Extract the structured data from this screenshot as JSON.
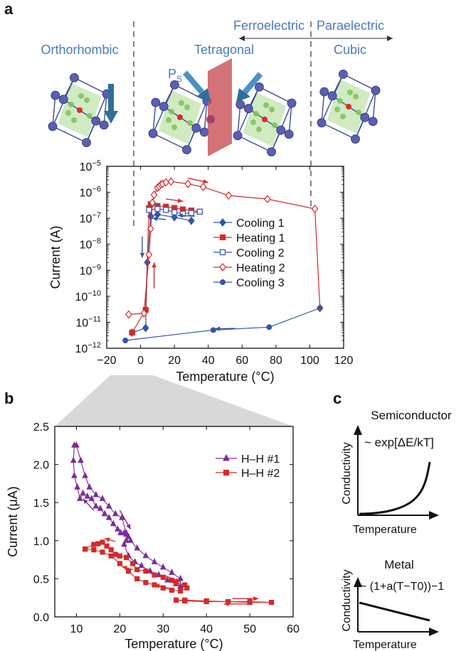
{
  "panel_labels": {
    "a": "a",
    "b": "b",
    "c": "c"
  },
  "phase_labels": {
    "orthorhombic": "Orthorhombic",
    "tetragonal": "Tetragonal",
    "cubic": "Cubic",
    "ferroelectric": "Ferroelectric",
    "paraelectric": "Paraelectric",
    "ps": "P",
    "ps_sub": "S"
  },
  "colors": {
    "blue_series": "#3555a6",
    "red_series": "#d42a2a",
    "purple_series": "#7b2d96",
    "phase_text": "#4a7ab8",
    "domain_wall": "#c9545a",
    "arrow": "#2f6f9a"
  },
  "chart_data": [
    {
      "id": "panel-a",
      "type": "line",
      "log_y": true,
      "xlabel": "Temperature (°C)",
      "ylabel": "Current (A)",
      "xlim": [
        -20,
        120
      ],
      "ylim_exp": [
        -12,
        -5
      ],
      "x_ticks": [
        "−20",
        "0",
        "20",
        "40",
        "60",
        "80",
        "100",
        "120"
      ],
      "y_tick_base": "10",
      "y_tick_exps": [
        "−12",
        "−11",
        "−10",
        "−9",
        "−8",
        "−7",
        "−6",
        "−5"
      ],
      "legend_position": "right",
      "series": [
        {
          "name": "Cooling 1",
          "color": "#3555a6",
          "marker": "diamond-filled",
          "points": [
            [
              30,
              8e-08
            ],
            [
              20,
              1.1e-07
            ],
            [
              10,
              1.4e-07
            ],
            [
              6,
              1.2e-07
            ],
            [
              4,
              2e-09
            ],
            [
              3,
              6e-12
            ],
            [
              -5,
              4e-12
            ]
          ]
        },
        {
          "name": "Heating 1",
          "color": "#d42a2a",
          "marker": "square-filled",
          "points": [
            [
              -5,
              4e-12
            ],
            [
              3,
              3e-11
            ],
            [
              5,
              2.5e-07
            ],
            [
              6,
              3.5e-07
            ],
            [
              10,
              3e-07
            ],
            [
              15,
              2.8e-07
            ],
            [
              20,
              2.5e-07
            ],
            [
              25,
              2.2e-07
            ],
            [
              30,
              2e-07
            ],
            [
              35,
              1.8e-07
            ]
          ]
        },
        {
          "name": "Cooling 2",
          "color": "#3555a6",
          "marker": "square-open",
          "points": [
            [
              35,
              1.8e-07
            ],
            [
              30,
              1.6e-07
            ],
            [
              25,
              1.5e-07
            ],
            [
              20,
              1.7e-07
            ],
            [
              15,
              2.1e-07
            ],
            [
              10,
              2.3e-07
            ],
            [
              5,
              2.1e-07
            ]
          ]
        },
        {
          "name": "Heating 2",
          "color": "#d42a2a",
          "marker": "diamond-open",
          "points": [
            [
              -7,
              2e-11
            ],
            [
              2,
              2.2e-11
            ],
            [
              5,
              4e-09
            ],
            [
              6,
              4e-08
            ],
            [
              7,
              4e-07
            ],
            [
              8,
              8e-07
            ],
            [
              10,
              1.5e-06
            ],
            [
              11,
              1.7e-06
            ],
            [
              12,
              2e-06
            ],
            [
              13,
              2.1e-06
            ],
            [
              15,
              2.4e-06
            ],
            [
              18,
              2.6e-06
            ],
            [
              28,
              2.1e-06
            ],
            [
              37,
              1.6e-06
            ],
            [
              52,
              7.5e-07
            ],
            [
              75,
              5.5e-07
            ],
            [
              103,
              2.3e-07
            ],
            [
              106,
              3.5e-11
            ]
          ]
        },
        {
          "name": "Cooling 3",
          "color": "#3555a6",
          "marker": "circle-filled",
          "points": [
            [
              106,
              3.5e-11
            ],
            [
              76,
              6.5e-12
            ],
            [
              43,
              5e-12
            ],
            [
              -9,
              2e-12
            ]
          ]
        }
      ]
    },
    {
      "id": "panel-b",
      "type": "line",
      "xlabel": "Temperature (°C)",
      "ylabel": "Current (μA)",
      "xlim": [
        5,
        60
      ],
      "ylim": [
        0,
        2.5
      ],
      "x_ticks": [
        "10",
        "20",
        "30",
        "40",
        "50",
        "60"
      ],
      "y_ticks": [
        "0.0",
        "0.5",
        "1.0",
        "1.5",
        "2.0",
        "2.5"
      ],
      "legend_position": "top-right",
      "series": [
        {
          "name": "H–H #1",
          "color": "#7b2d96",
          "marker": "triangle",
          "points": [
            [
              9.5,
              2.25
            ],
            [
              9.3,
              2.05
            ],
            [
              9.5,
              1.85
            ],
            [
              10.2,
              1.7
            ],
            [
              10.8,
              1.55
            ],
            [
              11.5,
              1.62
            ],
            [
              12.5,
              1.58
            ],
            [
              13.5,
              1.55
            ],
            [
              14.5,
              1.45
            ],
            [
              15.5,
              1.42
            ],
            [
              16.5,
              1.35
            ],
            [
              17.5,
              1.3
            ],
            [
              18.5,
              1.22
            ],
            [
              19.5,
              1.15
            ],
            [
              20.2,
              1.1
            ],
            [
              21,
              1.1
            ],
            [
              21.5,
              1.08
            ],
            [
              22,
              1.05
            ],
            [
              21.5,
              1.0
            ],
            [
              21,
              0.95
            ],
            [
              22,
              0.8
            ],
            [
              23.5,
              0.72
            ],
            [
              25,
              0.67
            ],
            [
              27,
              0.6
            ],
            [
              29,
              0.55
            ],
            [
              31,
              0.48
            ],
            [
              33,
              0.43
            ],
            [
              34,
              0.4
            ],
            [
              34,
              0.5
            ],
            [
              32,
              0.58
            ],
            [
              30,
              0.65
            ],
            [
              28,
              0.72
            ],
            [
              26,
              0.8
            ],
            [
              24,
              0.9
            ],
            [
              22.5,
              1.0
            ],
            [
              21.5,
              1.1
            ],
            [
              20.5,
              1.3
            ],
            [
              19,
              1.35
            ],
            [
              17.5,
              1.45
            ],
            [
              16,
              1.55
            ],
            [
              14.5,
              1.6
            ],
            [
              13,
              1.7
            ],
            [
              12,
              1.85
            ],
            [
              11,
              2.05
            ],
            [
              10,
              2.25
            ]
          ]
        },
        {
          "name": "H–H #2",
          "color": "#d42a2a",
          "marker": "square",
          "points": [
            [
              12,
              0.89
            ],
            [
              14,
              0.95
            ],
            [
              15,
              0.96
            ],
            [
              16,
              0.98
            ],
            [
              17,
              0.93
            ],
            [
              18,
              0.88
            ],
            [
              19,
              0.82
            ],
            [
              20,
              0.8
            ],
            [
              21.5,
              0.78
            ],
            [
              23,
              0.7
            ],
            [
              24,
              0.62
            ],
            [
              26,
              0.6
            ],
            [
              28,
              0.55
            ],
            [
              30,
              0.52
            ],
            [
              32,
              0.48
            ],
            [
              33,
              0.45
            ],
            [
              35,
              0.42
            ],
            [
              35.5,
              0.38
            ],
            [
              34,
              0.34
            ],
            [
              32,
              0.35
            ],
            [
              30,
              0.38
            ],
            [
              28,
              0.42
            ],
            [
              26,
              0.45
            ],
            [
              24,
              0.5
            ],
            [
              22,
              0.6
            ],
            [
              20,
              0.7
            ],
            [
              18,
              0.8
            ],
            [
              16,
              0.85
            ],
            [
              14,
              0.88
            ],
            [
              12,
              0.89
            ]
          ]
        },
        {
          "name": "H–H #2",
          "color": "#d42a2a",
          "marker": "square",
          "points": [
            [
              33,
              0.22
            ],
            [
              35,
              0.21
            ],
            [
              40,
              0.2
            ],
            [
              45,
              0.2
            ],
            [
              50,
              0.19
            ],
            [
              55,
              0.19
            ],
            [
              50,
              0.2
            ],
            [
              45,
              0.2
            ],
            [
              40,
              0.21
            ],
            [
              35,
              0.22
            ],
            [
              33,
              0.22
            ]
          ]
        }
      ]
    }
  ],
  "panel_c": {
    "semiconductor_title": "Semiconductor",
    "semiconductor_formula": "~ exp[ΔE/kT]",
    "metal_title": "Metal",
    "metal_formula": "~ (1+a(T−T0))−1",
    "ylabel": "Conductivity",
    "xlabel": "Temperature"
  }
}
